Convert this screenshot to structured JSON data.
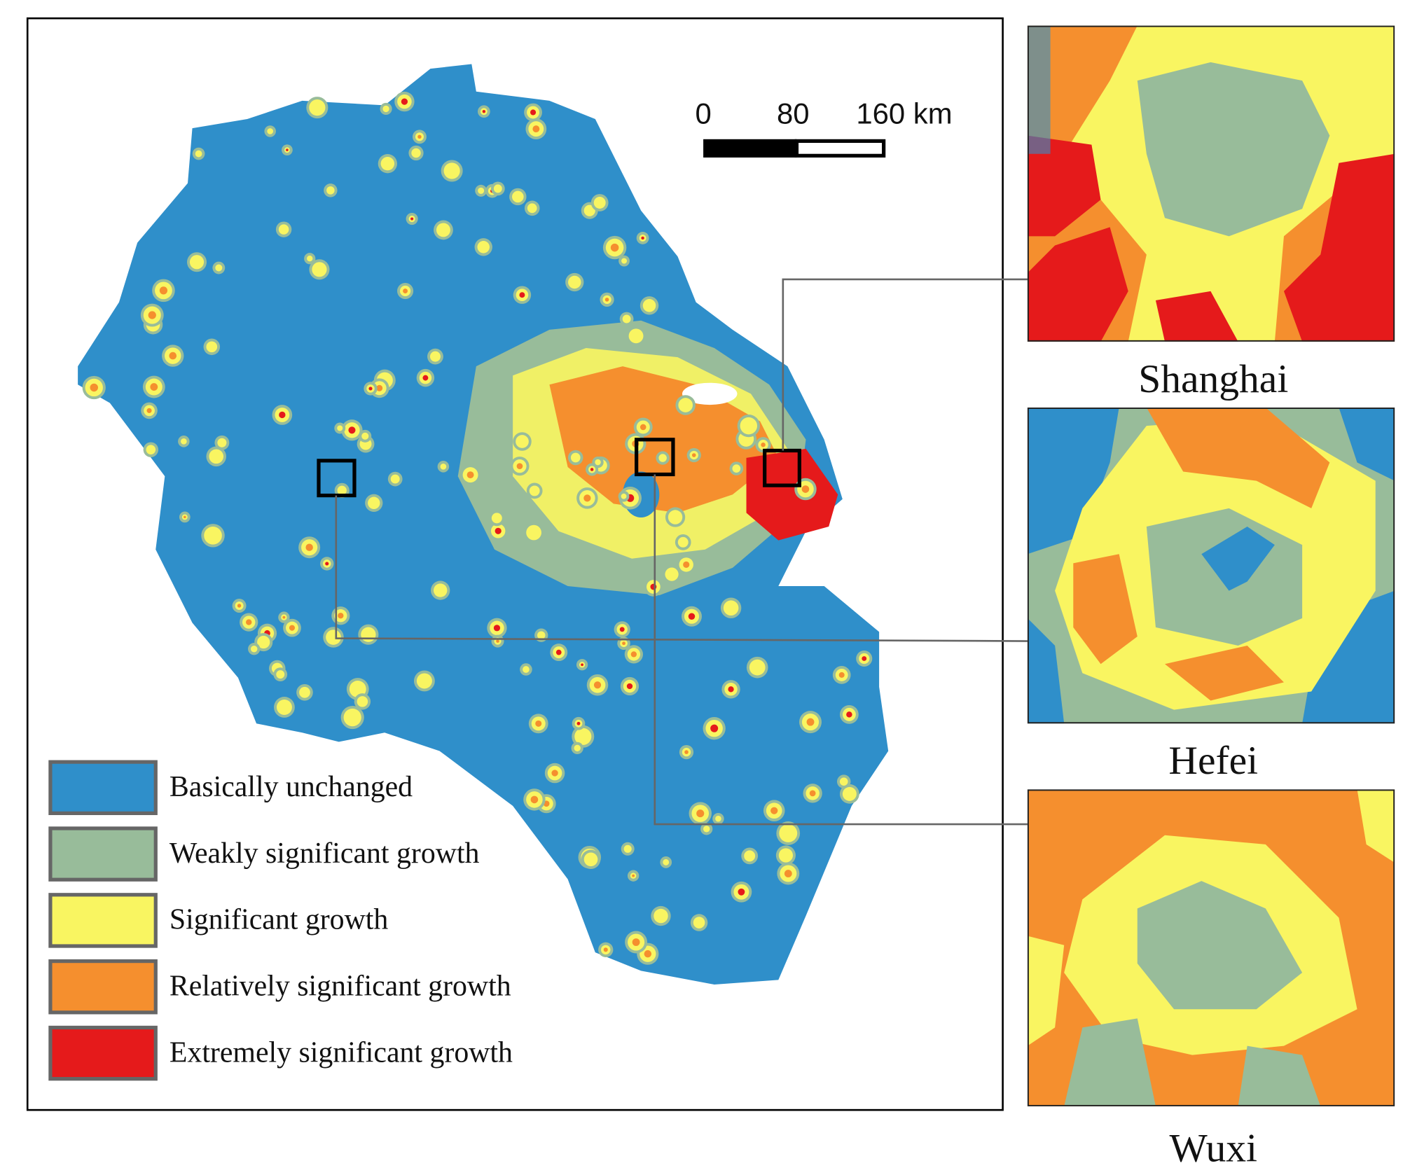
{
  "scale_bar": {
    "labels": [
      "0",
      "80",
      "160 km"
    ]
  },
  "legend": {
    "items": [
      {
        "label": "Basically unchanged",
        "color": "#2f8fca"
      },
      {
        "label": "Weakly significant growth",
        "color": "#98bc9a"
      },
      {
        "label": "Significant growth",
        "color": "#f9f561"
      },
      {
        "label": "Relatively significant growth",
        "color": "#f58f2e"
      },
      {
        "label": "Extremely significant growth",
        "color": "#e51a1b"
      }
    ]
  },
  "insets": [
    {
      "title": "Shanghai"
    },
    {
      "title": "Hefei"
    },
    {
      "title": "Wuxi"
    }
  ]
}
